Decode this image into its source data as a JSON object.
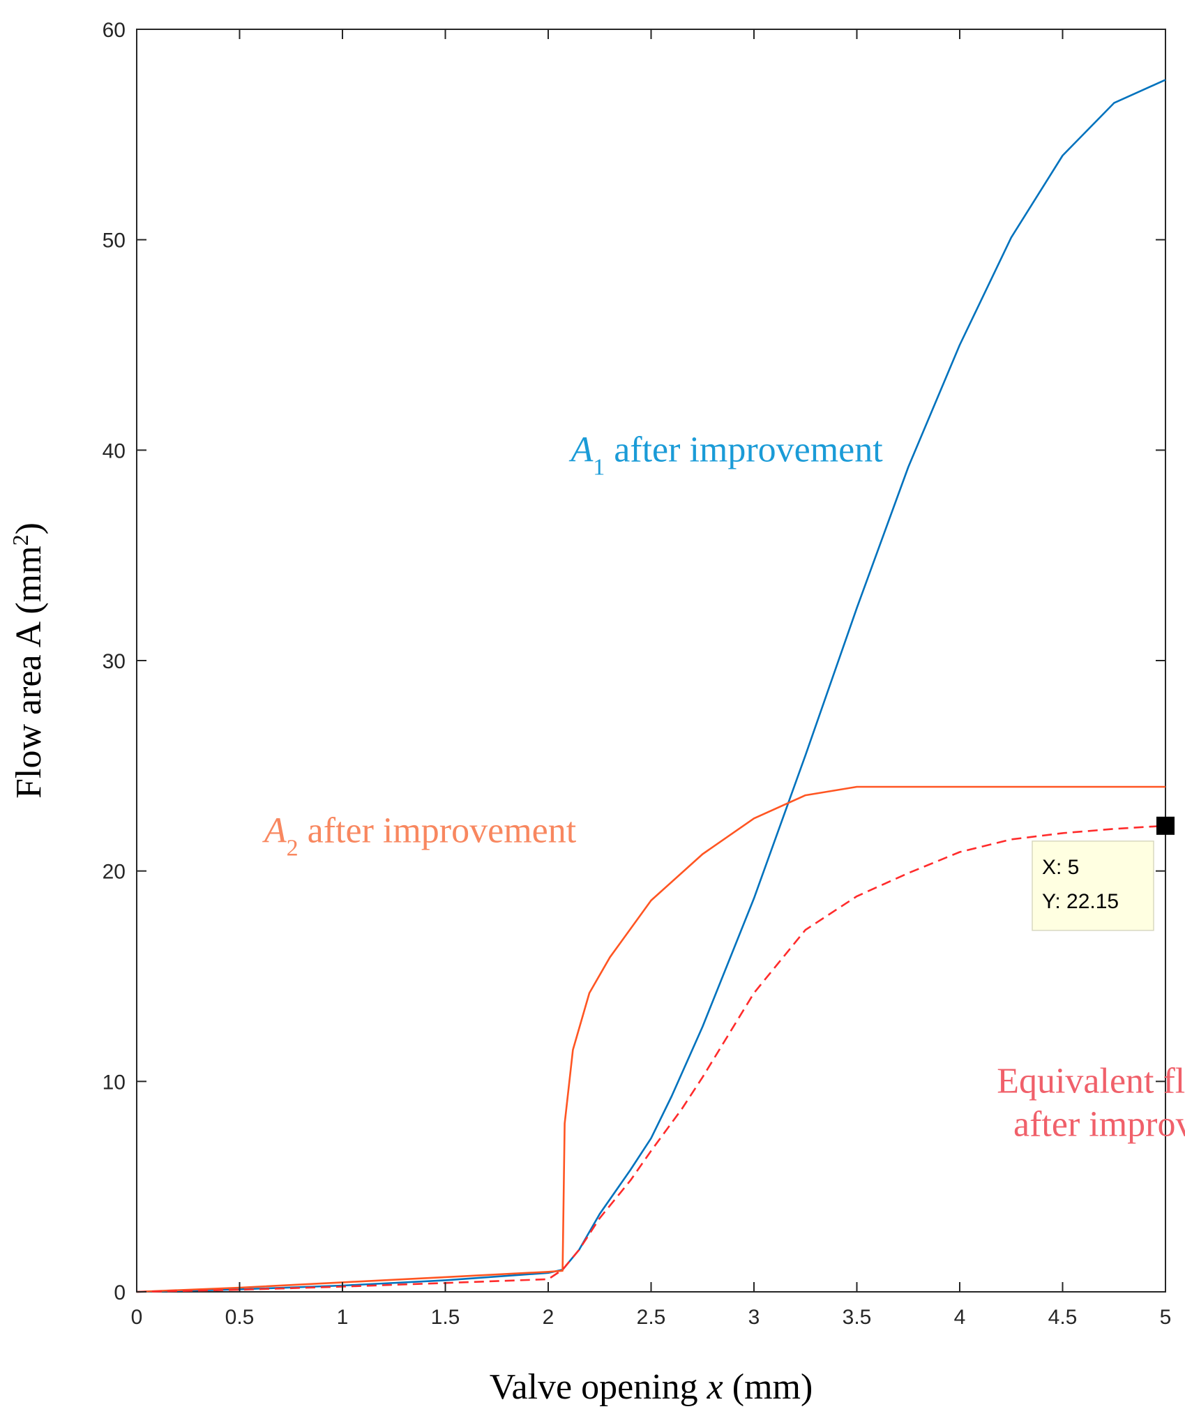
{
  "chart_data": {
    "type": "line",
    "title": "",
    "xlabel": "Valve opening x (mm)",
    "xlabel_parts": {
      "before": "Valve opening ",
      "italic": "x",
      "after": " (mm)"
    },
    "ylabel": "Flow area A  (mm2)",
    "ylabel_parts": {
      "main": "Flow area A  (mm",
      "sup": "2",
      "end": ")"
    },
    "xlim": [
      0,
      5
    ],
    "ylim": [
      0,
      60
    ],
    "xticks": [
      0,
      0.5,
      1,
      1.5,
      2,
      2.5,
      3,
      3.5,
      4,
      4.5,
      5
    ],
    "xtick_labels": [
      "0",
      "0.5",
      "1",
      "1.5",
      "2",
      "2.5",
      "3",
      "3.5",
      "4",
      "4.5",
      "5"
    ],
    "yticks": [
      0,
      10,
      20,
      30,
      40,
      50,
      60
    ],
    "ytick_labels": [
      "0",
      "10",
      "20",
      "30",
      "40",
      "50",
      "60"
    ],
    "grid": false,
    "series": [
      {
        "name": "A1 after improvement",
        "color": "#0072bd",
        "style": "solid",
        "x": [
          0,
          0.5,
          1,
          1.5,
          2,
          2.07,
          2.15,
          2.25,
          2.4,
          2.5,
          2.6,
          2.75,
          3,
          3.25,
          3.5,
          3.75,
          4,
          4.25,
          4.5,
          4.75,
          5
        ],
        "y": [
          0,
          0.12,
          0.3,
          0.55,
          0.9,
          1.05,
          2.0,
          3.7,
          5.8,
          7.3,
          9.3,
          12.6,
          18.7,
          25.5,
          32.5,
          39.2,
          45.0,
          50.1,
          54.0,
          56.5,
          57.6
        ]
      },
      {
        "name": "A2 after improvement",
        "color": "#ff5522",
        "style": "solid",
        "x": [
          0,
          0.5,
          1,
          1.5,
          2,
          2.07,
          2.08,
          2.12,
          2.2,
          2.3,
          2.5,
          2.75,
          3,
          3.25,
          3.5,
          4,
          4.5,
          5
        ],
        "y": [
          0,
          0.2,
          0.45,
          0.7,
          0.95,
          1.0,
          8.0,
          11.5,
          14.2,
          15.9,
          18.6,
          20.8,
          22.5,
          23.6,
          24.0,
          24.0,
          24.0,
          24.0
        ]
      },
      {
        "name": "Equivalent flow area after improvement",
        "color": "#ff2b2b",
        "style": "dashed",
        "x": [
          0,
          0.5,
          1,
          1.5,
          2,
          2.07,
          2.15,
          2.25,
          2.4,
          2.5,
          2.65,
          2.75,
          3,
          3.25,
          3.5,
          3.75,
          4,
          4.25,
          4.5,
          4.75,
          5
        ],
        "y": [
          0,
          0.1,
          0.25,
          0.42,
          0.6,
          1.05,
          2.0,
          3.5,
          5.3,
          6.7,
          8.7,
          10.2,
          14.2,
          17.2,
          18.8,
          19.9,
          20.9,
          21.5,
          21.8,
          22.0,
          22.15
        ]
      }
    ],
    "annotations": {
      "a1": {
        "symbol": "A",
        "sub": "1",
        "text": " after improvement",
        "color": "#1a9bd7",
        "anchor_x": 2.11,
        "anchor_y": 40
      },
      "a2": {
        "symbol": "A",
        "sub": "2",
        "text": " after improvement",
        "color": "#f8875f",
        "anchor_x": 0.62,
        "anchor_y": 21.9
      },
      "eq": {
        "line1": "Equivalent flow area",
        "line2": "after improvement",
        "color": "#f0606a",
        "anchor_x": 4.04,
        "anchor_y": 10.0
      }
    },
    "datatip": {
      "x": 5,
      "y": 22.15,
      "x_text": "X: 5",
      "y_text": "Y: 22.15"
    }
  }
}
